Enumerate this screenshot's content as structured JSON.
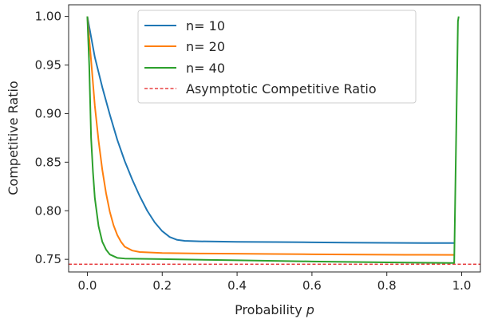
{
  "chart_data": {
    "type": "line",
    "title": "",
    "xlabel": "Probability",
    "xlabel_symbol": "p",
    "ylabel": "Competitive Ratio",
    "xlim": [
      -0.05,
      1.05
    ],
    "ylim": [
      0.737,
      1.012
    ],
    "xticks": [
      "0.0",
      "0.2",
      "0.4",
      "0.6",
      "0.8",
      "1.0"
    ],
    "yticks": [
      "0.75",
      "0.80",
      "0.85",
      "0.90",
      "0.95",
      "1.00"
    ],
    "grid": false,
    "legend_position": "top-center",
    "series": [
      {
        "name": "n= 10",
        "color": "#1f77b4",
        "points": [
          [
            0.0,
            1.0
          ],
          [
            0.02,
            0.958
          ],
          [
            0.04,
            0.927
          ],
          [
            0.06,
            0.899
          ],
          [
            0.08,
            0.873
          ],
          [
            0.1,
            0.851
          ],
          [
            0.12,
            0.832
          ],
          [
            0.14,
            0.815
          ],
          [
            0.16,
            0.8
          ],
          [
            0.18,
            0.788
          ],
          [
            0.2,
            0.779
          ],
          [
            0.22,
            0.773
          ],
          [
            0.24,
            0.77
          ],
          [
            0.26,
            0.769
          ],
          [
            0.3,
            0.7685
          ],
          [
            0.4,
            0.768
          ],
          [
            0.5,
            0.7678
          ],
          [
            0.6,
            0.7675
          ],
          [
            0.7,
            0.7672
          ],
          [
            0.8,
            0.767
          ],
          [
            0.9,
            0.7668
          ],
          [
            0.98,
            0.7668
          ]
        ]
      },
      {
        "name": "n= 20",
        "color": "#ff7f0e",
        "points": [
          [
            0.0,
            1.0
          ],
          [
            0.01,
            0.955
          ],
          [
            0.02,
            0.908
          ],
          [
            0.03,
            0.872
          ],
          [
            0.04,
            0.842
          ],
          [
            0.05,
            0.818
          ],
          [
            0.06,
            0.799
          ],
          [
            0.07,
            0.785
          ],
          [
            0.08,
            0.775
          ],
          [
            0.09,
            0.768
          ],
          [
            0.1,
            0.763
          ],
          [
            0.12,
            0.759
          ],
          [
            0.14,
            0.7575
          ],
          [
            0.2,
            0.7565
          ],
          [
            0.3,
            0.756
          ],
          [
            0.4,
            0.7558
          ],
          [
            0.5,
            0.7555
          ],
          [
            0.6,
            0.7552
          ],
          [
            0.7,
            0.755
          ],
          [
            0.8,
            0.7548
          ],
          [
            0.9,
            0.7546
          ],
          [
            0.98,
            0.7545
          ]
        ]
      },
      {
        "name": "n= 40",
        "color": "#2ca02c",
        "points": [
          [
            0.0,
            1.0
          ],
          [
            0.005,
            0.95
          ],
          [
            0.01,
            0.875
          ],
          [
            0.015,
            0.84
          ],
          [
            0.02,
            0.813
          ],
          [
            0.03,
            0.784
          ],
          [
            0.04,
            0.768
          ],
          [
            0.05,
            0.76
          ],
          [
            0.06,
            0.755
          ],
          [
            0.08,
            0.7515
          ],
          [
            0.1,
            0.7508
          ],
          [
            0.2,
            0.7502
          ],
          [
            0.4,
            0.749
          ],
          [
            0.6,
            0.7478
          ],
          [
            0.8,
            0.7468
          ],
          [
            0.97,
            0.7462
          ],
          [
            0.98,
            0.7462
          ],
          [
            0.99,
            0.995
          ],
          [
            0.992,
            1.0
          ]
        ]
      }
    ],
    "reference_line": {
      "name": "Asymptotic Competitive Ratio",
      "y": 0.745,
      "color": "#e31a1c",
      "style": "dashed"
    }
  }
}
